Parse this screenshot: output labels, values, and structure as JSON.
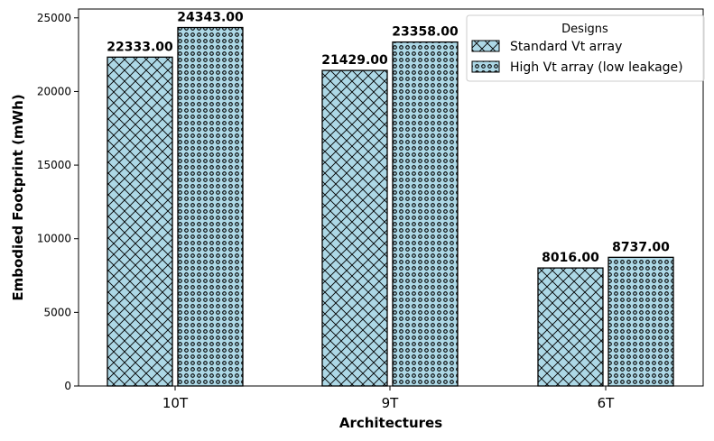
{
  "chart_data": {
    "type": "bar",
    "categories": [
      "10T",
      "9T",
      "6T"
    ],
    "series": [
      {
        "name": "Standard Vt array",
        "values": [
          22333.0,
          21429.0,
          8016.0
        ],
        "pattern": "crosshatch"
      },
      {
        "name": "High Vt array (low leakage)",
        "values": [
          24343.0,
          23358.0,
          8737.0
        ],
        "pattern": "dots"
      }
    ],
    "data_labels": [
      [
        "22333.00",
        "21429.00",
        "8016.00"
      ],
      [
        "24343.00",
        "23358.00",
        "8737.00"
      ]
    ],
    "xlabel": "Architectures",
    "ylabel": "Embodied Footprint (mWh)",
    "ylim": [
      0,
      25600
    ],
    "yticks": [
      0,
      5000,
      10000,
      15000,
      20000,
      25000
    ],
    "legend": {
      "title": "Designs",
      "position": "top-right"
    },
    "bar_color": "#add8e6",
    "edge_color": "#000000",
    "grid": false
  }
}
